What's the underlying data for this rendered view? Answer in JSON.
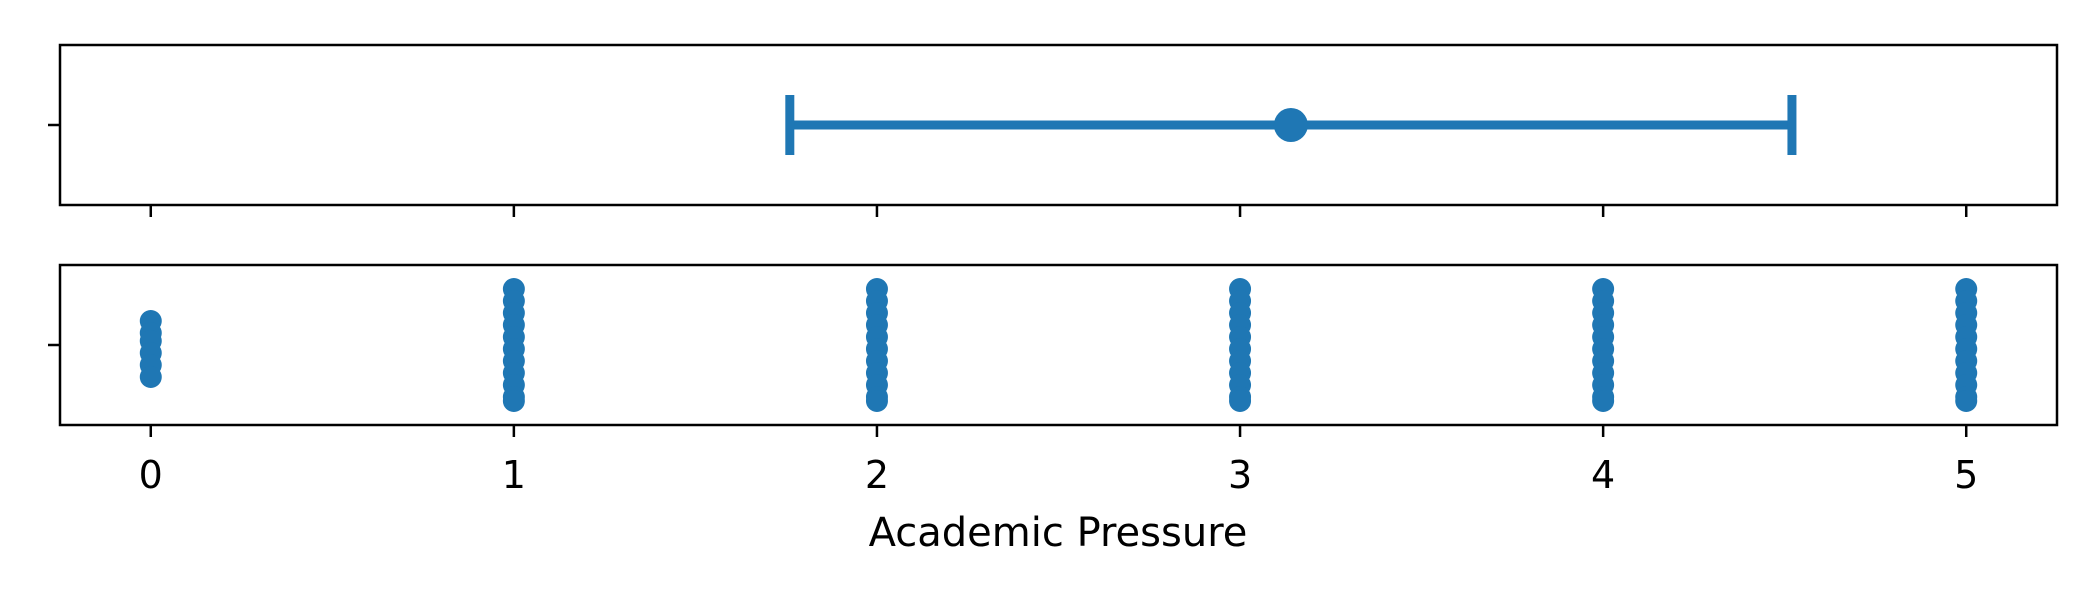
{
  "chart_data": {
    "type": "scatter",
    "xlabel": "Academic Pressure",
    "xlim": [
      -0.25,
      5.25
    ],
    "x_ticks": [
      "0",
      "1",
      "2",
      "3",
      "4",
      "5"
    ],
    "series_color": "#1f77b4",
    "panels": [
      {
        "kind": "errorbar",
        "mean": 3.14,
        "lower": 1.76,
        "upper": 4.52
      },
      {
        "kind": "strip",
        "points": [
          {
            "x": 0,
            "y": [
              0.3,
              0.15,
              0.05,
              -0.1,
              -0.25,
              -0.4
            ]
          },
          {
            "x": 1,
            "y": [
              0.7,
              0.55,
              0.4,
              0.25,
              0.1,
              -0.05,
              -0.2,
              -0.35,
              -0.5,
              -0.65,
              -0.7
            ]
          },
          {
            "x": 2,
            "y": [
              0.7,
              0.55,
              0.4,
              0.25,
              0.1,
              -0.05,
              -0.2,
              -0.35,
              -0.5,
              -0.65,
              -0.7
            ]
          },
          {
            "x": 3,
            "y": [
              0.7,
              0.55,
              0.4,
              0.25,
              0.1,
              -0.05,
              -0.2,
              -0.35,
              -0.5,
              -0.65,
              -0.7
            ]
          },
          {
            "x": 4,
            "y": [
              0.7,
              0.55,
              0.4,
              0.25,
              0.1,
              -0.05,
              -0.2,
              -0.35,
              -0.5,
              -0.65,
              -0.7
            ]
          },
          {
            "x": 5,
            "y": [
              0.7,
              0.55,
              0.4,
              0.25,
              0.1,
              -0.05,
              -0.2,
              -0.35,
              -0.5,
              -0.65,
              -0.7
            ]
          }
        ]
      }
    ]
  }
}
